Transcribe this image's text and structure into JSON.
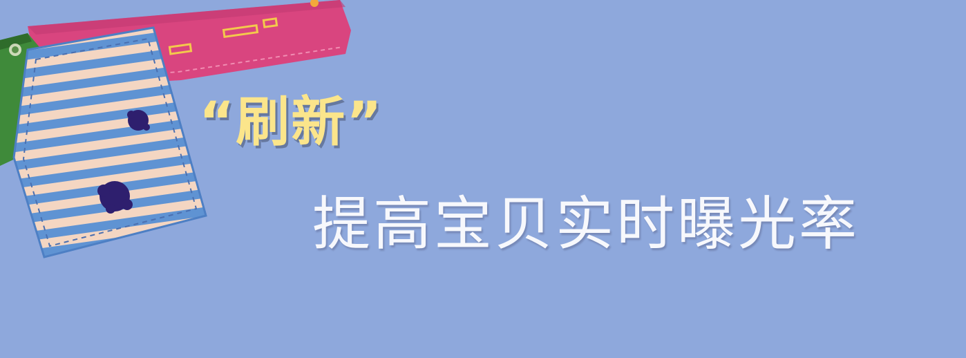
{
  "banner": {
    "headline": "“刷新”",
    "subline": "提高宝贝实时曝光率"
  },
  "colors": {
    "background": "#8ea8dc",
    "headline": "#fbe58b",
    "subline": "#f7f8fc",
    "pink_fabric": "#d9457f",
    "green_fabric": "#3f8a3a",
    "stripe_blue": "#5f93d3",
    "stripe_peach": "#f4d6c2",
    "ink_blot": "#2e1f6e"
  },
  "icons": [
    "pink-fabric-patch",
    "green-fabric-patch",
    "striped-fabric-patch",
    "ink-blot"
  ]
}
